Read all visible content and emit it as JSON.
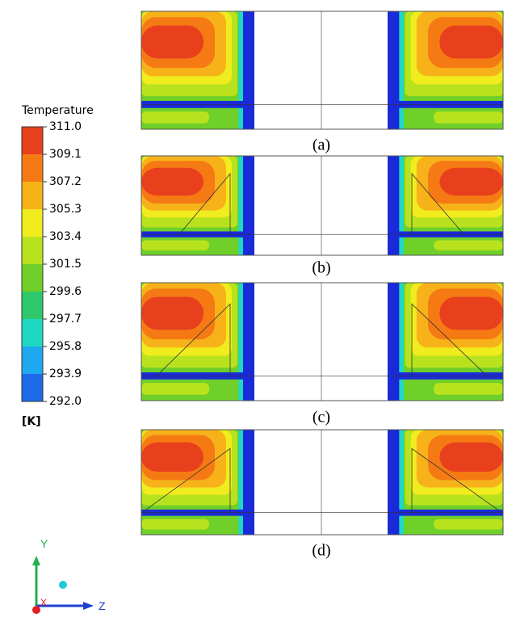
{
  "legend": {
    "title": "Temperature",
    "unit": "[K]",
    "ticks": [
      "311.0",
      "309.1",
      "307.2",
      "305.3",
      "303.4",
      "301.5",
      "299.6",
      "297.7",
      "295.8",
      "293.9",
      "292.0"
    ]
  },
  "panels": [
    {
      "label": "(a)"
    },
    {
      "label": "(b)"
    },
    {
      "label": "(c)"
    },
    {
      "label": "(d)"
    }
  ],
  "triad": {
    "y": "Y",
    "z": "Z",
    "x": "X"
  }
}
